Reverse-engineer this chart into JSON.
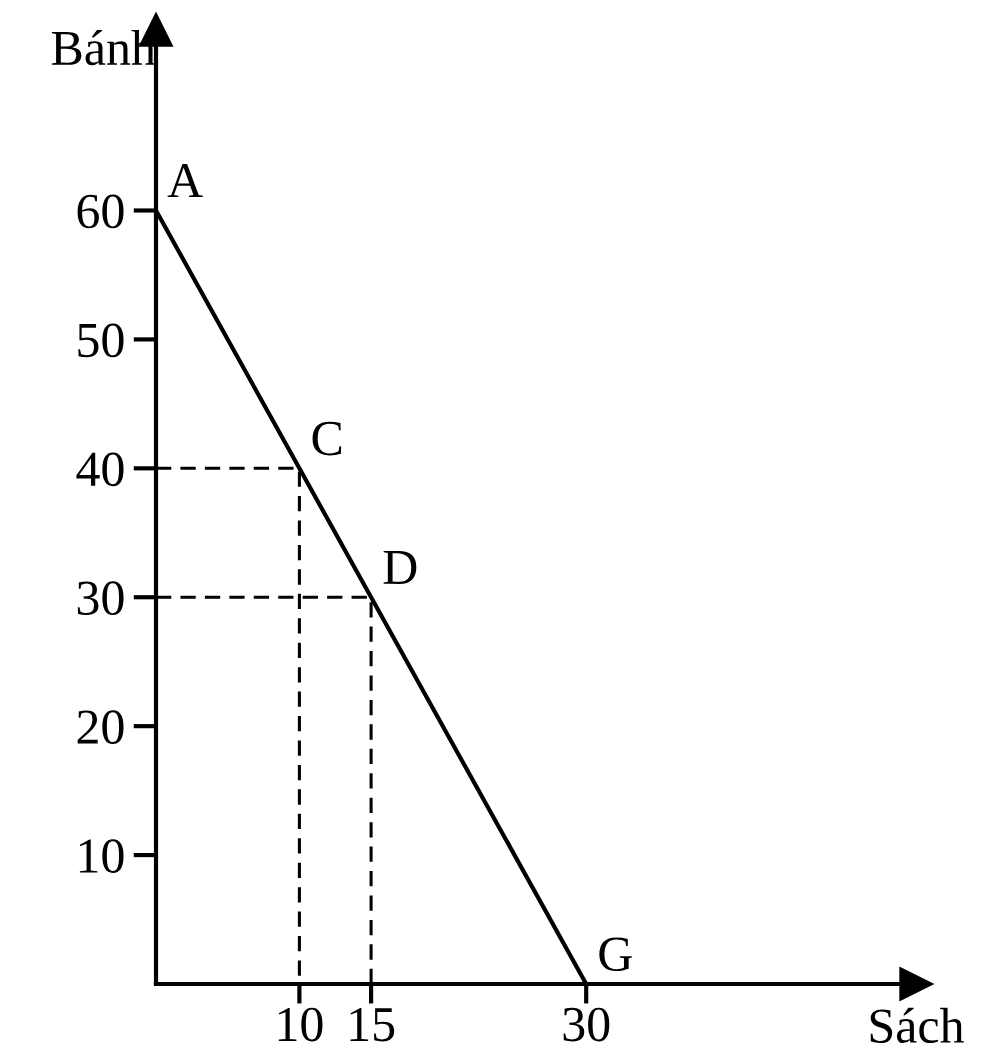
{
  "chart_data": {
    "type": "line",
    "xlabel": "Sách",
    "ylabel": "Bánh",
    "series": [
      {
        "x": [
          0,
          10,
          15,
          30
        ],
        "values": [
          60,
          40,
          30,
          0
        ],
        "color": "#000000",
        "line_style": "solid"
      },
      {
        "x": [
          0,
          10,
          10
        ],
        "values": [
          40,
          40,
          0
        ],
        "color": "#000000",
        "line_style": "dashed"
      },
      {
        "x": [
          0,
          15,
          15
        ],
        "values": [
          30,
          30,
          0
        ],
        "color": "#000000",
        "line_style": "dashed"
      }
    ],
    "xlim": [
      0,
      53
    ],
    "ylim": [
      0,
      74
    ],
    "xticks": [
      10,
      15,
      30
    ],
    "yticks": [
      10,
      20,
      30,
      40,
      50,
      60
    ],
    "grid": false,
    "marker": "none",
    "annotations": [
      {
        "text": "A",
        "x": 0,
        "y": 60
      },
      {
        "text": "C",
        "x": 10,
        "y": 40
      },
      {
        "text": "D",
        "x": 15,
        "y": 30
      },
      {
        "text": "G",
        "x": 30,
        "y": 0
      }
    ]
  }
}
